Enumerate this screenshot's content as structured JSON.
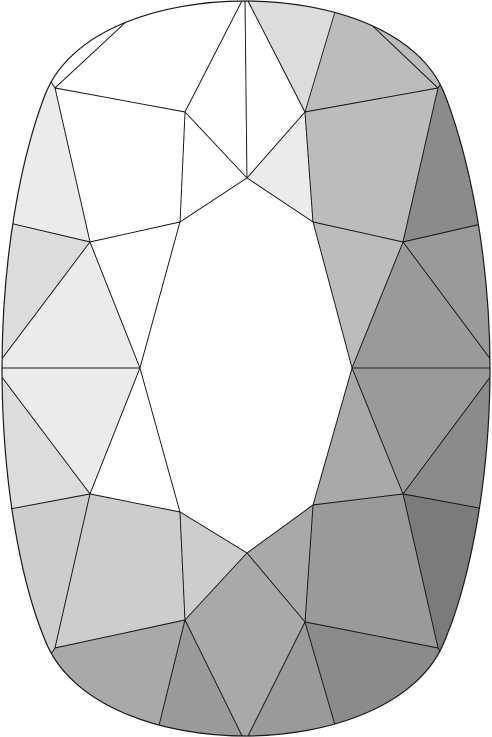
{
  "diagram": {
    "subject": "cushion-cut-gemstone",
    "view": "top",
    "shading": {
      "white": "#ffffff",
      "very_light": "#ebebeb",
      "light": "#dcdcdc",
      "mid_light": "#cdcdcd",
      "mid": "#bcbcbc",
      "mid_dark": "#a9a9a9",
      "dark": "#9a9a9a",
      "darker": "#8b8b8b",
      "darkest": "#7b7b7b"
    },
    "line_color": "#1a1a1a",
    "background": "#ffffff"
  }
}
